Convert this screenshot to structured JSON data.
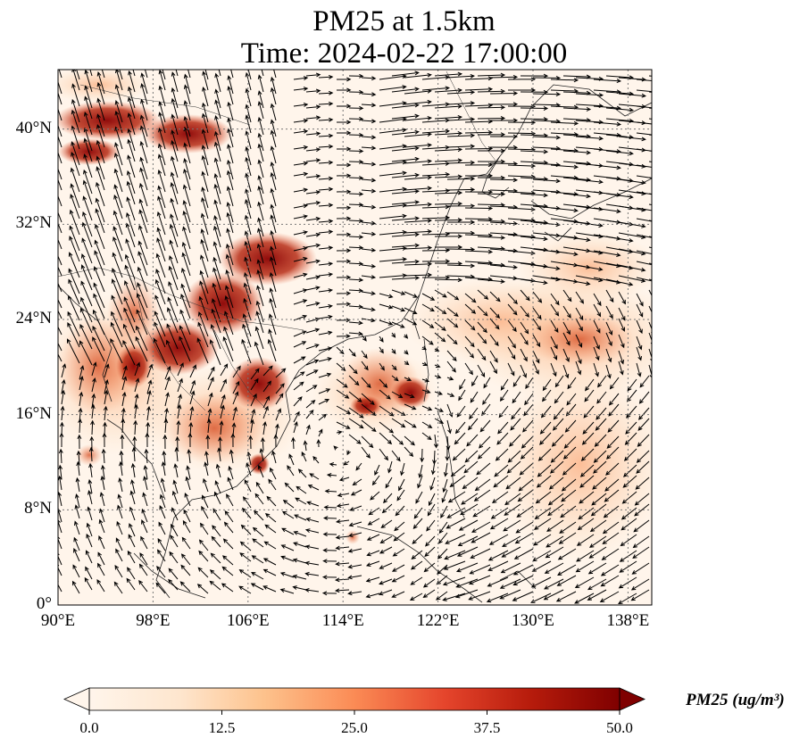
{
  "title_line1": "PM25 at 1.5km",
  "title_line2": "Time: 2024-02-22 17:00:00",
  "map": {
    "lon_range": [
      90,
      140
    ],
    "lat_range": [
      0,
      45
    ],
    "lat_ticks": [
      {
        "value": 0,
        "label": "0°"
      },
      {
        "value": 8,
        "label": "8°N"
      },
      {
        "value": 16,
        "label": "16°N"
      },
      {
        "value": 24,
        "label": "24°N"
      },
      {
        "value": 32,
        "label": "32°N"
      },
      {
        "value": 40,
        "label": "40°N"
      }
    ],
    "lon_ticks": [
      {
        "value": 90,
        "label": "90°E"
      },
      {
        "value": 98,
        "label": "98°E"
      },
      {
        "value": 106,
        "label": "106°E"
      },
      {
        "value": 114,
        "label": "114°E"
      },
      {
        "value": 122,
        "label": "122°E"
      },
      {
        "value": 130,
        "label": "130°E"
      },
      {
        "value": 138,
        "label": "138°E"
      }
    ]
  },
  "colorbar": {
    "label": "PM25 (ug/m³)",
    "min": 0,
    "max": 50,
    "tick_labels": [
      "0.0",
      "12.5",
      "25.0",
      "37.5",
      "50.0"
    ],
    "colors": [
      "#fff5eb",
      "#fdd9b4",
      "#fda762",
      "#f3701b",
      "#d94801",
      "#a63603",
      "#7f0000"
    ]
  }
}
